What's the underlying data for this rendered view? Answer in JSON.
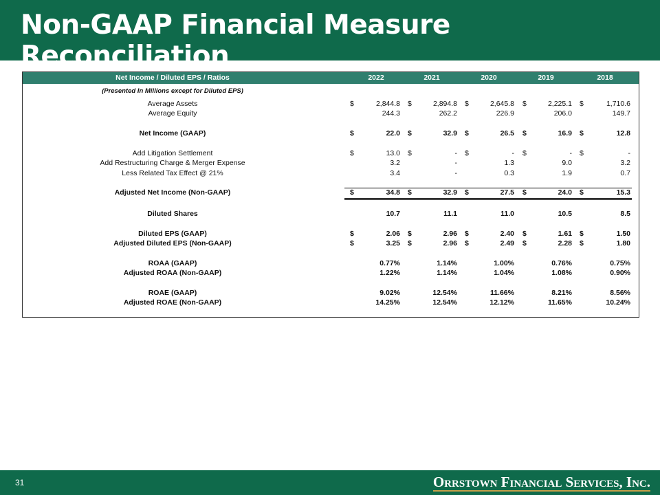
{
  "title": "Non-GAAP Financial Measure Reconciliation",
  "colors": {
    "brand_green": "#0f6a4b",
    "header_teal": "#2f7f6e",
    "logo_gold": "#c9a04a"
  },
  "table": {
    "header_label": "Net Income / Diluted EPS / Ratios",
    "years": [
      "2022",
      "2021",
      "2020",
      "2019",
      "2018"
    ],
    "subtitle": "(Presented In Millions except for Diluted EPS)",
    "rows": [
      {
        "label": "Average Assets",
        "bold": false,
        "dollar": true,
        "values": [
          "2,844.8",
          "2,894.8",
          "2,645.8",
          "2,225.1",
          "1,710.6"
        ]
      },
      {
        "label": "Average Equity",
        "bold": false,
        "dollar": false,
        "values": [
          "244.3",
          "262.2",
          "226.9",
          "206.0",
          "149.7"
        ]
      },
      {
        "label": "Net Income (GAAP)",
        "bold": true,
        "dollar": true,
        "values": [
          "22.0",
          "32.9",
          "26.5",
          "16.9",
          "12.8"
        ]
      },
      {
        "label": "Add Litigation Settlement",
        "bold": false,
        "dollar": true,
        "values": [
          "13.0",
          "-",
          "-",
          "-",
          "-"
        ]
      },
      {
        "label": "Add Restructuring Charge & Merger Expense",
        "bold": false,
        "dollar": false,
        "values": [
          "3.2",
          "-",
          "1.3",
          "9.0",
          "3.2"
        ]
      },
      {
        "label": "Less Related Tax Effect @ 21%",
        "bold": false,
        "dollar": false,
        "values": [
          "3.4",
          "-",
          "0.3",
          "1.9",
          "0.7"
        ]
      },
      {
        "label": "Adjusted Net Income (Non-GAAP)",
        "bold": true,
        "dollar": true,
        "values": [
          "34.8",
          "32.9",
          "27.5",
          "24.0",
          "15.3"
        ]
      },
      {
        "label": "Diluted Shares",
        "bold": true,
        "dollar": false,
        "values": [
          "10.7",
          "11.1",
          "11.0",
          "10.5",
          "8.5"
        ]
      },
      {
        "label": "Diluted EPS (GAAP)",
        "bold": true,
        "dollar": true,
        "values": [
          "2.06",
          "2.96",
          "2.40",
          "1.61",
          "1.50"
        ]
      },
      {
        "label": "Adjusted Diluted EPS (Non-GAAP)",
        "bold": true,
        "dollar": true,
        "values": [
          "3.25",
          "2.96",
          "2.49",
          "2.28",
          "1.80"
        ]
      },
      {
        "label": "ROAA (GAAP)",
        "bold": true,
        "dollar": false,
        "values": [
          "0.77%",
          "1.14%",
          "1.00%",
          "0.76%",
          "0.75%"
        ]
      },
      {
        "label": "Adjusted ROAA (Non-GAAP)",
        "bold": true,
        "dollar": false,
        "values": [
          "1.22%",
          "1.14%",
          "1.04%",
          "1.08%",
          "0.90%"
        ]
      },
      {
        "label": "ROAE (GAAP)",
        "bold": true,
        "dollar": false,
        "values": [
          "9.02%",
          "12.54%",
          "11.66%",
          "8.21%",
          "8.56%"
        ]
      },
      {
        "label": "Adjusted ROAE (Non-GAAP)",
        "bold": true,
        "dollar": false,
        "values": [
          "14.25%",
          "12.54%",
          "12.12%",
          "11.65%",
          "10.24%"
        ]
      }
    ],
    "dollar_sign": "$"
  },
  "footer": {
    "page_number": "31",
    "logo_text": "Orrstown Financial Services, Inc."
  }
}
